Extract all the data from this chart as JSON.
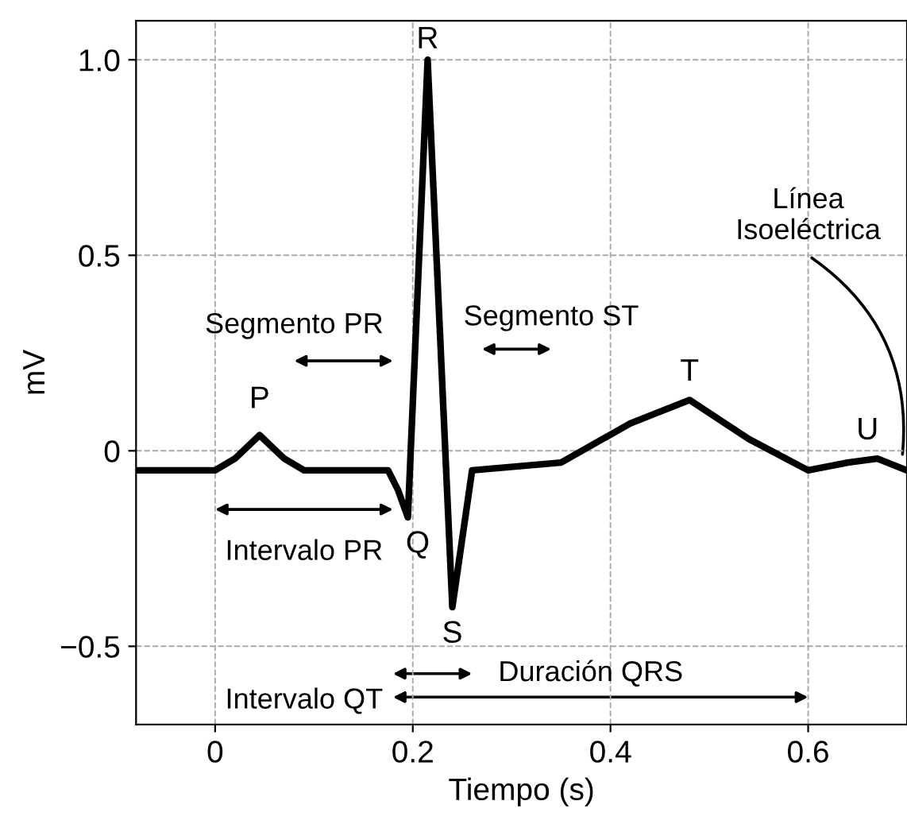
{
  "chart_data": {
    "type": "line",
    "xlabel": "Tiempo (s)",
    "ylabel": "mV",
    "x": [
      -0.08,
      0,
      0.02,
      0.045,
      0.07,
      0.09,
      0.175,
      0.185,
      0.195,
      0.215,
      0.24,
      0.26,
      0.35,
      0.42,
      0.48,
      0.54,
      0.6,
      0.64,
      0.67,
      0.7
    ],
    "series": [
      {
        "color": "#000000",
        "values": [
          -0.05,
          -0.05,
          -0.02,
          0.04,
          -0.02,
          -0.05,
          -0.05,
          -0.1,
          -0.17,
          1.0,
          -0.4,
          -0.05,
          -0.03,
          0.07,
          0.13,
          0.03,
          -0.05,
          -0.03,
          -0.02,
          -0.05
        ]
      }
    ],
    "xlim": [
      -0.08,
      0.7
    ],
    "ylim": [
      -0.7,
      1.1
    ],
    "xticks": [
      0,
      0.2,
      0.4,
      0.6
    ],
    "yticks": [
      {
        "value": -0.5,
        "label": "−0.5"
      },
      0,
      0.5,
      {
        "value": 1.0,
        "label": "1.0"
      }
    ],
    "grid": true,
    "marker": "none",
    "line_style": "solid",
    "legend": false,
    "annotations": [
      "P",
      "Q",
      "R",
      "S",
      "T",
      "U",
      "Segmento PR",
      "Segmento ST",
      "Intervalo PR",
      "Duración QRS",
      "Intervalo QT",
      "Línea\nIsoeléctrica"
    ]
  }
}
